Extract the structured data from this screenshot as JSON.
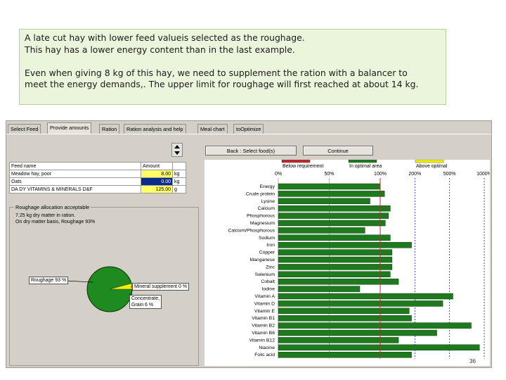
{
  "note": {
    "line1": "A late cut hay with lower feed valueis selected as the roughage.",
    "line2": "This hay has a lower energy content than in the last example.",
    "line3": "Even when giving 8 kg of this hay, we need to supplement the ration with a balancer to",
    "line4": "meet the energy demands,. The upper limit for roughage will first reached at about 14 kg."
  },
  "tabs": [
    "Select Feed",
    "Provide amounts",
    "Ration",
    "Ration analysis and help",
    "Meal chart",
    "toOptimize"
  ],
  "buttons": {
    "back": "Back : Select food(s)",
    "continue": "Continue"
  },
  "feed_table": {
    "col_name": "Feed name",
    "col_amount": "Amount",
    "rows": [
      {
        "name": "Meadow hay, poor",
        "amount": "8.00",
        "unit": "kg",
        "color": "#ffff66"
      },
      {
        "name": "Oats",
        "amount": "0.00",
        "unit": "kg",
        "color": "#0a2a8c"
      },
      {
        "name": "DA DY VITAMINS & MINERALS D&F",
        "amount": "125.00",
        "unit": "g",
        "color": "#ffff66"
      }
    ]
  },
  "roughage": {
    "title": "Roughage allocation acceptable",
    "line1": "7.25 kg dry matter in ration.",
    "line2": "On dry matter basis, Roughage 93%",
    "label_roughage": "Roughage 93 %",
    "label_mineral": "Mineral supplement 0 %",
    "label_conc1": "Concentrate,",
    "label_conc2": "Grain 6 %"
  },
  "chart_data": {
    "type": "bar",
    "orientation": "horizontal",
    "legend": [
      "Below requirement",
      "In optimal area",
      "Above optimal"
    ],
    "legend_colors": [
      "#c0282d",
      "#1f7a1f",
      "#f2f200"
    ],
    "scale_ticks": [
      "0%",
      "50%",
      "100%",
      "200%",
      "500%",
      "1000%"
    ],
    "categories": [
      "Energy",
      "Crude protein",
      "Lysine",
      "Calcium",
      "Phosphorous",
      "Magnesium",
      "Calcium/Phosphorous",
      "Sodium",
      "Iron",
      "Copper",
      "Manganese",
      "Zinc",
      "Selenium",
      "Cobalt",
      "Iodine",
      "Vitamin A",
      "Vitamin D",
      "Vitamin E",
      "Vitamin B1",
      "Vitamin B2",
      "Vitamin B6",
      "Vitamin B12",
      "Niacine",
      "Folic acid"
    ],
    "values": [
      100,
      110,
      90,
      125,
      120,
      112,
      85,
      125,
      200,
      130,
      130,
      130,
      125,
      150,
      80,
      500,
      400,
      190,
      200,
      750,
      350,
      150,
      900,
      200
    ],
    "unit": "% of requirement (log scale)"
  },
  "slide_number": "36"
}
